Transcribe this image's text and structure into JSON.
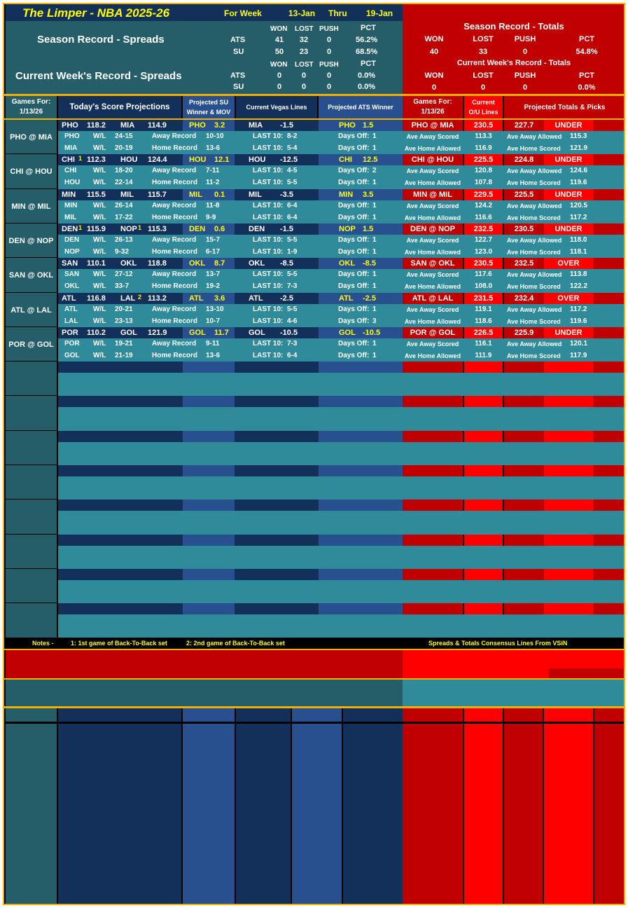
{
  "header": {
    "title": "The Limper - NBA 2025-26",
    "for_week": "For Week",
    "week_start": "13-Jan",
    "thru": "Thru",
    "week_end": "19-Jan"
  },
  "spreads": {
    "season_title": "Season Record - Spreads",
    "current_title": "Current Week's Record - Spreads",
    "cols": [
      "WON",
      "LOST",
      "PUSH",
      "PCT"
    ],
    "season": [
      {
        "label": "ATS",
        "won": "41",
        "lost": "32",
        "push": "0",
        "pct": "56.2%"
      },
      {
        "label": "SU",
        "won": "50",
        "lost": "23",
        "push": "0",
        "pct": "68.5%"
      }
    ],
    "current": [
      {
        "label": "ATS",
        "won": "0",
        "lost": "0",
        "push": "0",
        "pct": "0.0%"
      },
      {
        "label": "SU",
        "won": "0",
        "lost": "0",
        "push": "0",
        "pct": "0.0%"
      }
    ]
  },
  "totals": {
    "season_title": "Season Record - Totals",
    "current_title": "Current Week's Record - Totals",
    "cols": [
      "WON",
      "LOST",
      "PUSH",
      "PCT"
    ],
    "season": {
      "won": "40",
      "lost": "33",
      "push": "0",
      "pct": "54.8%"
    },
    "current": {
      "won": "0",
      "lost": "0",
      "push": "0",
      "pct": "0.0%"
    }
  },
  "col_headers": {
    "games_for": "Games For:",
    "date": "1/13/26",
    "score_proj": "Today's Score Projections",
    "proj_su": "Projected SU",
    "winner_mov": "Winner & MOV",
    "vegas": "Current Vegas Lines",
    "proj_ats": "Projected ATS Winner",
    "games_for2": "Games For:",
    "date2": "1/13/26",
    "current": "Current",
    "ou_lines": "O/U Lines",
    "totals_picks": "Projected Totals & Picks"
  },
  "games": [
    {
      "matchup": "PHO @ MIA",
      "away": "PHO",
      "away_pts": "118.2",
      "away_b2b": "",
      "home": "MIA",
      "home_pts": "114.9",
      "home_b2b": "",
      "su_team": "PHO",
      "su_mov": "3.2",
      "vegas_team": "MIA",
      "vegas_line": "-1.5",
      "ats_team": "PHO",
      "ats_line": "1.5",
      "ou": "230.5",
      "proj_total": "227.7",
      "pick": "UNDER",
      "away_row": {
        "wl": "24-15",
        "rec_label": "Away Record",
        "rec": "10-10",
        "last10": "8-2",
        "days_off": "1",
        "ave_label": "Ave Away Scored",
        "ave": "113.3",
        "ave2_label": "Ave Away Allowed",
        "ave2": "115.3"
      },
      "home_row": {
        "wl": "20-19",
        "rec_label": "Home Record",
        "rec": "13-6",
        "last10": "5-4",
        "days_off": "1",
        "ave_label": "Ave Home Allowed",
        "ave": "116.9",
        "ave2_label": "Ave Home Scored",
        "ave2": "121.9"
      }
    },
    {
      "matchup": "CHI @ HOU",
      "away": "CHI",
      "away_pts": "112.3",
      "away_b2b": "1",
      "home": "HOU",
      "home_pts": "124.4",
      "home_b2b": "",
      "su_team": "HOU",
      "su_mov": "12.1",
      "vegas_team": "HOU",
      "vegas_line": "-12.5",
      "ats_team": "CHI",
      "ats_line": "12.5",
      "ou": "225.5",
      "proj_total": "224.8",
      "pick": "UNDER",
      "away_row": {
        "wl": "18-20",
        "rec_label": "Away Record",
        "rec": "7-11",
        "last10": "4-5",
        "days_off": "2",
        "ave_label": "Ave Away Scored",
        "ave": "120.8",
        "ave2_label": "Ave Away Allowed",
        "ave2": "124.6"
      },
      "home_row": {
        "wl": "22-14",
        "rec_label": "Home Record",
        "rec": "11-2",
        "last10": "5-5",
        "days_off": "1",
        "ave_label": "Ave Home Allowed",
        "ave": "107.8",
        "ave2_label": "Ave Home Scored",
        "ave2": "119.6"
      }
    },
    {
      "matchup": "MIN @ MIL",
      "away": "MIN",
      "away_pts": "115.5",
      "away_b2b": "",
      "home": "MIL",
      "home_pts": "115.7",
      "home_b2b": "",
      "su_team": "MIL",
      "su_mov": "0.1",
      "vegas_team": "MIL",
      "vegas_line": "-3.5",
      "ats_team": "MIN",
      "ats_line": "3.5",
      "ou": "229.5",
      "proj_total": "225.5",
      "pick": "UNDER",
      "away_row": {
        "wl": "26-14",
        "rec_label": "Away Record",
        "rec": "11-8",
        "last10": "6-4",
        "days_off": "1",
        "ave_label": "Ave Away Scored",
        "ave": "124.2",
        "ave2_label": "Ave Away Allowed",
        "ave2": "120.5"
      },
      "home_row": {
        "wl": "17-22",
        "rec_label": "Home Record",
        "rec": "9-9",
        "last10": "6-4",
        "days_off": "1",
        "ave_label": "Ave Home Allowed",
        "ave": "116.6",
        "ave2_label": "Ave Home Scored",
        "ave2": "117.2"
      }
    },
    {
      "matchup": "DEN @ NOP",
      "away": "DEN",
      "away_pts": "115.9",
      "away_b2b": "1",
      "home": "NOP",
      "home_pts": "115.3",
      "home_b2b": "1",
      "su_team": "DEN",
      "su_mov": "0.6",
      "vegas_team": "DEN",
      "vegas_line": "-1.5",
      "ats_team": "NOP",
      "ats_line": "1.5",
      "ou": "232.5",
      "proj_total": "230.5",
      "pick": "UNDER",
      "away_row": {
        "wl": "26-13",
        "rec_label": "Away Record",
        "rec": "15-7",
        "last10": "5-5",
        "days_off": "1",
        "ave_label": "Ave Away Scored",
        "ave": "122.7",
        "ave2_label": "Ave Away Allowed",
        "ave2": "118.0"
      },
      "home_row": {
        "wl": "9-32",
        "rec_label": "Home Record",
        "rec": "6-17",
        "last10": "1-9",
        "days_off": "1",
        "ave_label": "Ave Home Allowed",
        "ave": "123.0",
        "ave2_label": "Ave Home Scored",
        "ave2": "118.1"
      }
    },
    {
      "matchup": "SAN @ OKL",
      "away": "SAN",
      "away_pts": "110.1",
      "away_b2b": "",
      "home": "OKL",
      "home_pts": "118.8",
      "home_b2b": "",
      "su_team": "OKL",
      "su_mov": "8.7",
      "vegas_team": "OKL",
      "vegas_line": "-8.5",
      "ats_team": "OKL",
      "ats_line": "-8.5",
      "ou": "230.5",
      "proj_total": "232.5",
      "pick": "OVER",
      "away_row": {
        "wl": "27-12",
        "rec_label": "Away Record",
        "rec": "13-7",
        "last10": "5-5",
        "days_off": "1",
        "ave_label": "Ave Away Scored",
        "ave": "117.6",
        "ave2_label": "Ave Away Allowed",
        "ave2": "113.8"
      },
      "home_row": {
        "wl": "33-7",
        "rec_label": "Home Record",
        "rec": "19-2",
        "last10": "7-3",
        "days_off": "1",
        "ave_label": "Ave Home Allowed",
        "ave": "108.0",
        "ave2_label": "Ave Home Scored",
        "ave2": "122.2"
      }
    },
    {
      "matchup": "ATL @ LAL",
      "away": "ATL",
      "away_pts": "116.8",
      "away_b2b": "",
      "home": "LAL",
      "home_pts": "113.2",
      "home_b2b": "2",
      "su_team": "ATL",
      "su_mov": "3.6",
      "vegas_team": "ATL",
      "vegas_line": "-2.5",
      "ats_team": "ATL",
      "ats_line": "-2.5",
      "ou": "231.5",
      "proj_total": "232.4",
      "pick": "OVER",
      "away_row": {
        "wl": "20-21",
        "rec_label": "Away Record",
        "rec": "13-10",
        "last10": "5-5",
        "days_off": "1",
        "ave_label": "Ave Away Scored",
        "ave": "119.1",
        "ave2_label": "Ave Away Allowed",
        "ave2": "117.2"
      },
      "home_row": {
        "wl": "23-13",
        "rec_label": "Home Record",
        "rec": "10-7",
        "last10": "4-6",
        "days_off": "3",
        "ave_label": "Ave Home Allowed",
        "ave": "118.6",
        "ave2_label": "Ave Home Scored",
        "ave2": "119.6"
      }
    },
    {
      "matchup": "POR @ GOL",
      "away": "POR",
      "away_pts": "110.2",
      "away_b2b": "",
      "home": "GOL",
      "home_pts": "121.9",
      "home_b2b": "",
      "su_team": "GOL",
      "su_mov": "11.7",
      "vegas_team": "GOL",
      "vegas_line": "-10.5",
      "ats_team": "GOL",
      "ats_line": "-10.5",
      "ou": "226.5",
      "proj_total": "225.9",
      "pick": "UNDER",
      "away_row": {
        "wl": "19-21",
        "rec_label": "Away Record",
        "rec": "9-11",
        "last10": "7-3",
        "days_off": "1",
        "ave_label": "Ave Away Scored",
        "ave": "116.1",
        "ave2_label": "Ave Away Allowed",
        "ave2": "120.1"
      },
      "home_row": {
        "wl": "21-19",
        "rec_label": "Home Record",
        "rec": "13-6",
        "last10": "6-4",
        "days_off": "1",
        "ave_label": "Ave Home Allowed",
        "ave": "111.9",
        "ave2_label": "Ave Home Scored",
        "ave2": "117.9"
      }
    }
  ],
  "labels": {
    "wl": "W/L",
    "last10": "LAST 10:",
    "days_off": "Days Off:"
  },
  "notes": {
    "label": "Notes -",
    "n1": "1:  1st game of Back-To-Back set",
    "n2": "2:  2nd game of Back-To-Back set",
    "source": "Spreads & Totals Consensus Lines From VSiN"
  }
}
